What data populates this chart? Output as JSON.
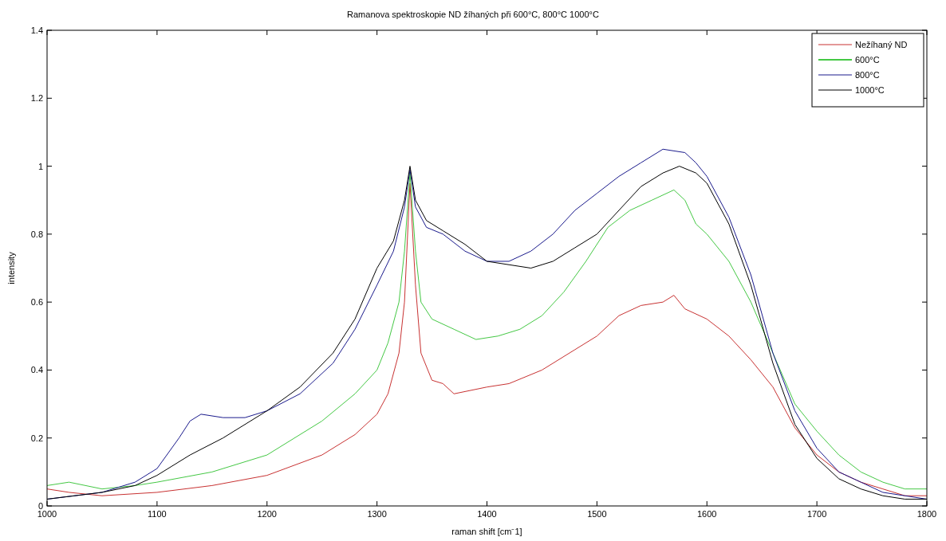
{
  "chart_data": {
    "type": "line",
    "title": "Ramanova spektroskopie ND žíhaných při 600°C, 800°C 1000°C",
    "xlabel": "raman shift [cm⁻1]",
    "ylabel": "intensity",
    "xlim": [
      1000,
      1800
    ],
    "xticks": [
      1000,
      1100,
      1200,
      1300,
      1400,
      1500,
      1600,
      1700,
      1800
    ],
    "ylim": [
      0,
      1.4
    ],
    "yticks": [
      0,
      0.2,
      0.4,
      0.6,
      0.8,
      1,
      1.2,
      1.4
    ],
    "grid": false,
    "legend": "top right",
    "marker": "none",
    "line_style": "solid",
    "series": [
      {
        "name": "Nežíhaný ND",
        "color": "#c83232",
        "x": [
          1000,
          1020,
          1050,
          1100,
          1150,
          1200,
          1250,
          1280,
          1300,
          1310,
          1320,
          1325,
          1330,
          1335,
          1340,
          1350,
          1360,
          1370,
          1400,
          1420,
          1450,
          1480,
          1500,
          1520,
          1540,
          1560,
          1570,
          1580,
          1600,
          1620,
          1640,
          1660,
          1680,
          1700,
          1720,
          1740,
          1760,
          1780,
          1800
        ],
        "values": [
          0.05,
          0.04,
          0.03,
          0.04,
          0.06,
          0.09,
          0.15,
          0.21,
          0.27,
          0.33,
          0.45,
          0.6,
          0.95,
          0.65,
          0.45,
          0.37,
          0.36,
          0.33,
          0.35,
          0.36,
          0.4,
          0.46,
          0.5,
          0.56,
          0.59,
          0.6,
          0.62,
          0.58,
          0.55,
          0.5,
          0.43,
          0.35,
          0.23,
          0.15,
          0.1,
          0.07,
          0.05,
          0.03,
          0.03
        ]
      },
      {
        "name": "600°C",
        "color": "#44c844",
        "x": [
          1000,
          1020,
          1050,
          1080,
          1100,
          1150,
          1200,
          1250,
          1280,
          1300,
          1310,
          1320,
          1325,
          1330,
          1335,
          1340,
          1350,
          1370,
          1390,
          1410,
          1430,
          1450,
          1470,
          1490,
          1510,
          1530,
          1550,
          1570,
          1580,
          1590,
          1600,
          1620,
          1640,
          1660,
          1680,
          1700,
          1720,
          1740,
          1760,
          1780,
          1800
        ],
        "values": [
          0.06,
          0.07,
          0.05,
          0.06,
          0.07,
          0.1,
          0.15,
          0.25,
          0.33,
          0.4,
          0.48,
          0.6,
          0.75,
          0.98,
          0.75,
          0.6,
          0.55,
          0.52,
          0.49,
          0.5,
          0.52,
          0.56,
          0.63,
          0.72,
          0.82,
          0.87,
          0.9,
          0.93,
          0.9,
          0.83,
          0.8,
          0.72,
          0.6,
          0.45,
          0.3,
          0.22,
          0.15,
          0.1,
          0.07,
          0.05,
          0.05
        ]
      },
      {
        "name": "800°C",
        "color": "#1a1a8c",
        "x": [
          1000,
          1050,
          1080,
          1100,
          1120,
          1130,
          1140,
          1160,
          1180,
          1200,
          1230,
          1260,
          1280,
          1300,
          1315,
          1325,
          1330,
          1335,
          1345,
          1360,
          1380,
          1400,
          1420,
          1440,
          1460,
          1480,
          1500,
          1520,
          1540,
          1560,
          1580,
          1590,
          1600,
          1620,
          1640,
          1660,
          1680,
          1700,
          1720,
          1740,
          1760,
          1780,
          1800
        ],
        "values": [
          0.02,
          0.04,
          0.07,
          0.11,
          0.2,
          0.25,
          0.27,
          0.26,
          0.26,
          0.28,
          0.33,
          0.42,
          0.52,
          0.65,
          0.75,
          0.88,
          0.99,
          0.88,
          0.82,
          0.8,
          0.75,
          0.72,
          0.72,
          0.75,
          0.8,
          0.87,
          0.92,
          0.97,
          1.01,
          1.05,
          1.04,
          1.01,
          0.97,
          0.85,
          0.68,
          0.45,
          0.28,
          0.17,
          0.1,
          0.07,
          0.04,
          0.03,
          0.02
        ]
      },
      {
        "name": "1000°C",
        "color": "#000000",
        "x": [
          1000,
          1050,
          1080,
          1100,
          1130,
          1160,
          1200,
          1230,
          1260,
          1280,
          1300,
          1315,
          1325,
          1330,
          1335,
          1345,
          1360,
          1380,
          1400,
          1420,
          1440,
          1460,
          1480,
          1500,
          1520,
          1540,
          1560,
          1575,
          1590,
          1600,
          1620,
          1640,
          1660,
          1680,
          1700,
          1720,
          1740,
          1760,
          1780,
          1800
        ],
        "values": [
          0.02,
          0.04,
          0.06,
          0.09,
          0.15,
          0.2,
          0.28,
          0.35,
          0.45,
          0.55,
          0.7,
          0.78,
          0.9,
          1,
          0.9,
          0.84,
          0.81,
          0.77,
          0.72,
          0.71,
          0.7,
          0.72,
          0.76,
          0.8,
          0.87,
          0.94,
          0.98,
          1,
          0.98,
          0.95,
          0.83,
          0.65,
          0.42,
          0.24,
          0.14,
          0.08,
          0.05,
          0.03,
          0.02,
          0.02
        ]
      }
    ]
  }
}
